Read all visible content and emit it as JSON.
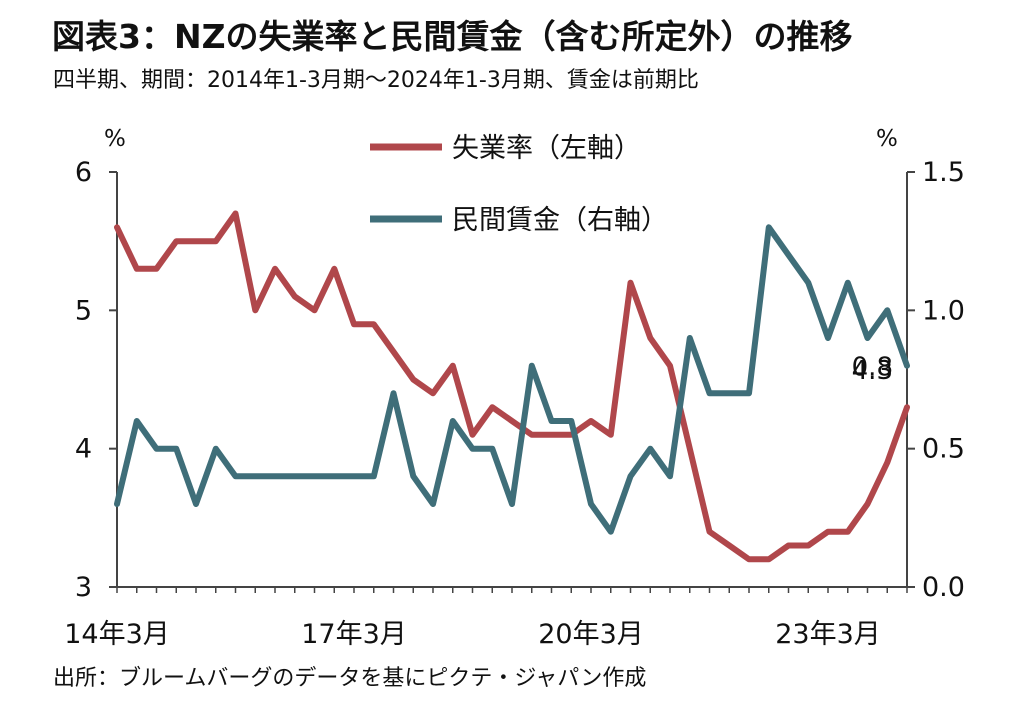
{
  "header": {
    "title": "図表3：NZの失業率と民間賃金（含む所定外）の推移",
    "subtitle": "四半期、期間：2014年1-3月期～2024年1-3月期、賃金は前期比"
  },
  "footer": {
    "source": "出所：ブルームバーグのデータを基にピクテ・ジャパン作成"
  },
  "chart_data": {
    "type": "line",
    "title": "NZの失業率と民間賃金（含む所定外）の推移",
    "x": [
      "2014Q1",
      "2014Q2",
      "2014Q3",
      "2014Q4",
      "2015Q1",
      "2015Q2",
      "2015Q3",
      "2015Q4",
      "2016Q1",
      "2016Q2",
      "2016Q3",
      "2016Q4",
      "2017Q1",
      "2017Q2",
      "2017Q3",
      "2017Q4",
      "2018Q1",
      "2018Q2",
      "2018Q3",
      "2018Q4",
      "2019Q1",
      "2019Q2",
      "2019Q3",
      "2019Q4",
      "2020Q1",
      "2020Q2",
      "2020Q3",
      "2020Q4",
      "2021Q1",
      "2021Q2",
      "2021Q3",
      "2021Q4",
      "2022Q1",
      "2022Q2",
      "2022Q3",
      "2022Q4",
      "2023Q1",
      "2023Q2",
      "2023Q3",
      "2023Q4",
      "2024Q1"
    ],
    "x_tick_labels": [
      "14年3月",
      "17年3月",
      "20年3月",
      "23年3月"
    ],
    "x_tick_index": [
      0,
      12,
      24,
      36
    ],
    "series": [
      {
        "name": "失業率（左軸）",
        "axis": "left",
        "color": "#b0474b",
        "values": [
          5.6,
          5.3,
          5.3,
          5.5,
          5.5,
          5.5,
          5.7,
          5.0,
          5.3,
          5.1,
          5.0,
          5.3,
          4.9,
          4.9,
          4.7,
          4.5,
          4.4,
          4.6,
          4.1,
          4.3,
          4.2,
          4.1,
          4.1,
          4.1,
          4.2,
          4.1,
          5.2,
          4.8,
          4.6,
          4.0,
          3.4,
          3.3,
          3.2,
          3.2,
          3.3,
          3.3,
          3.4,
          3.4,
          3.6,
          3.9,
          4.3
        ],
        "end_label": "4.3"
      },
      {
        "name": "民間賃金（右軸）",
        "axis": "right",
        "color": "#3f6e79",
        "values": [
          0.3,
          0.6,
          0.5,
          0.5,
          0.3,
          0.5,
          0.4,
          0.4,
          0.4,
          0.4,
          0.4,
          0.4,
          0.4,
          0.4,
          0.7,
          0.4,
          0.3,
          0.6,
          0.5,
          0.5,
          0.3,
          0.8,
          0.6,
          0.6,
          0.3,
          0.2,
          0.4,
          0.5,
          0.4,
          0.9,
          0.7,
          0.7,
          0.7,
          1.3,
          1.2,
          1.1,
          0.9,
          1.1,
          0.9,
          1.0,
          0.8
        ],
        "end_label": "0.8"
      }
    ],
    "y_left": {
      "label": "%",
      "range": [
        3,
        6
      ],
      "ticks": [
        "3",
        "4",
        "5",
        "6"
      ]
    },
    "y_right": {
      "label": "%",
      "range": [
        0.0,
        1.5
      ],
      "ticks": [
        "0.0",
        "0.5",
        "1.0",
        "1.5"
      ]
    },
    "legend_position": "top-center"
  }
}
